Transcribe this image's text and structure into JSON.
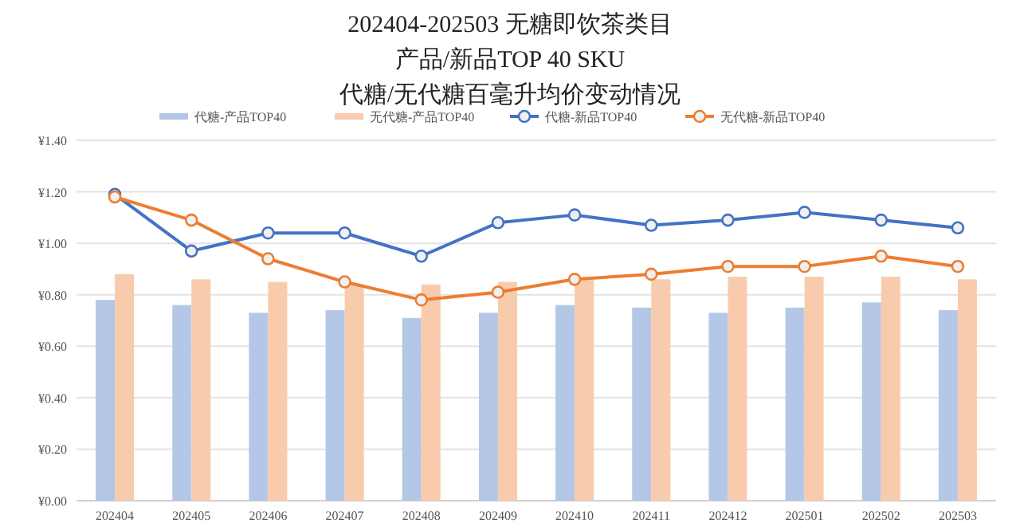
{
  "chart_data": {
    "type": "bar",
    "title": "202404-202503 无糖即饮茶类目",
    "subtitle": "产品/新品TOP 40 SKU",
    "annotations": [
      "代糖/无代糖百毫升均价变动情况"
    ],
    "categories": [
      "202404",
      "202405",
      "202406",
      "202407",
      "202408",
      "202409",
      "202410",
      "202411",
      "202412",
      "202501",
      "202502",
      "202503"
    ],
    "series": [
      {
        "name": "代糖-产品TOP40",
        "color": "#b4c7e7",
        "values": [
          0.78,
          0.76,
          0.73,
          0.74,
          0.71,
          0.73,
          0.76,
          0.75,
          0.73,
          0.75,
          0.77,
          0.74
        ]
      },
      {
        "name": "无代糖-产品TOP40",
        "color": "#f8cbad",
        "values": [
          0.88,
          0.86,
          0.85,
          0.84,
          0.84,
          0.85,
          0.86,
          0.86,
          0.87,
          0.87,
          0.87,
          0.86
        ]
      },
      {
        "name": "代糖-新品TOP40",
        "type": "line",
        "color": "#4472c4",
        "values": [
          1.19,
          0.97,
          1.04,
          1.04,
          0.95,
          1.08,
          1.11,
          1.07,
          1.09,
          1.12,
          1.09,
          1.06
        ]
      },
      {
        "name": "无代糖-新品TOP40",
        "type": "line",
        "color": "#ed7d31",
        "values": [
          1.18,
          1.09,
          0.94,
          0.85,
          0.78,
          0.81,
          0.86,
          0.88,
          0.91,
          0.91,
          0.95,
          0.91
        ]
      }
    ],
    "ylim": [
      0,
      1.4
    ],
    "yticks": [
      {
        "value": 0,
        "label": "¥0.00"
      },
      {
        "value": 0.2,
        "label": "¥0.20"
      },
      {
        "value": 0.4,
        "label": "¥0.40"
      },
      {
        "value": 0.6,
        "label": "¥0.60"
      },
      {
        "value": 0.8,
        "label": "¥0.80"
      },
      {
        "value": 1.0,
        "label": "¥1.00"
      },
      {
        "value": 1.2,
        "label": "¥1.20"
      },
      {
        "value": 1.4,
        "label": "¥1.40"
      }
    ],
    "grid": "y",
    "legend": "top",
    "marker": "circle"
  }
}
